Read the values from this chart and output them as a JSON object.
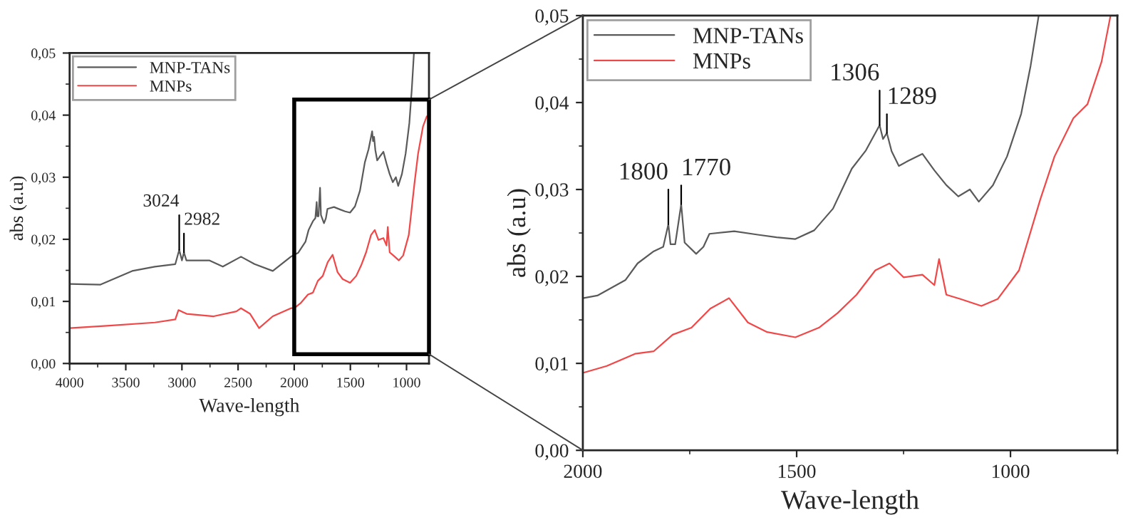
{
  "chart_data": [
    {
      "type": "line",
      "xlabel": "Wave-length",
      "ylabel": "abs (a.u)",
      "xlim": [
        4000,
        800
      ],
      "ylim": [
        0,
        0.05
      ],
      "xticks": [
        4000,
        3500,
        3000,
        2500,
        2000,
        1500,
        1000
      ],
      "yticks": [
        {
          "value": 0,
          "label": "0,00"
        },
        {
          "value": 0.01,
          "label": "0,01"
        },
        {
          "value": 0.02,
          "label": "0,02"
        },
        {
          "value": 0.03,
          "label": "0,03"
        },
        {
          "value": 0.04,
          "label": "0,04"
        },
        {
          "value": 0.05,
          "label": "0,05"
        }
      ],
      "legend": "top left",
      "series": [
        {
          "name": "MNP-TANs",
          "color": "#5a5a5a",
          "x": [
            4000,
            3725,
            3443,
            3241,
            3059,
            3024,
            3000,
            2982,
            2960,
            2757,
            2636,
            2474,
            2353,
            2191,
            2030,
            2000,
            1966,
            1900,
            1872,
            1834,
            1812,
            1800,
            1795,
            1784,
            1770,
            1762,
            1735,
            1718,
            1704,
            1646,
            1591,
            1547,
            1503,
            1459,
            1415,
            1371,
            1338,
            1306,
            1298,
            1289,
            1278,
            1261,
            1239,
            1206,
            1178,
            1150,
            1122,
            1095,
            1074,
            1041,
            1008,
            975,
            953,
            934
          ],
          "values": [
            0.0128,
            0.0127,
            0.0149,
            0.0156,
            0.016,
            0.0183,
            0.0166,
            0.0179,
            0.0166,
            0.0166,
            0.0156,
            0.0172,
            0.016,
            0.0149,
            0.0172,
            0.0175,
            0.0178,
            0.0196,
            0.0215,
            0.0229,
            0.0234,
            0.026,
            0.0237,
            0.0237,
            0.0283,
            0.0239,
            0.0226,
            0.0234,
            0.0249,
            0.0252,
            0.0248,
            0.0245,
            0.0243,
            0.0253,
            0.0278,
            0.0324,
            0.0345,
            0.0374,
            0.0358,
            0.0365,
            0.0344,
            0.0327,
            0.0333,
            0.0341,
            0.0322,
            0.0305,
            0.0292,
            0.03,
            0.0286,
            0.0305,
            0.0338,
            0.0387,
            0.0442,
            0.05
          ]
        },
        {
          "name": "MNPs",
          "color": "#f04848",
          "x": [
            4000,
            3645,
            3241,
            3059,
            3031,
            2958,
            2717,
            2515,
            2474,
            2393,
            2313,
            2191,
            2030,
            2000,
            1944,
            1878,
            1834,
            1790,
            1746,
            1702,
            1658,
            1614,
            1569,
            1503,
            1448,
            1404,
            1360,
            1316,
            1283,
            1250,
            1206,
            1178,
            1167,
            1150,
            1117,
            1068,
            1030,
            980,
            930,
            897,
            853,
            820
          ],
          "values": [
            0.0057,
            0.0061,
            0.0066,
            0.0071,
            0.0086,
            0.008,
            0.0076,
            0.0084,
            0.0089,
            0.008,
            0.0057,
            0.0076,
            0.0089,
            0.0089,
            0.0097,
            0.0111,
            0.0114,
            0.0133,
            0.0141,
            0.0163,
            0.0175,
            0.0147,
            0.0136,
            0.013,
            0.0141,
            0.0158,
            0.0179,
            0.0207,
            0.0215,
            0.0199,
            0.0202,
            0.019,
            0.022,
            0.0179,
            0.0174,
            0.0166,
            0.0174,
            0.0207,
            0.0289,
            0.0338,
            0.0382,
            0.0398
          ]
        }
      ],
      "annotations": [
        {
          "text": "3024",
          "x": 3024,
          "y": 0.0183
        },
        {
          "text": "2982",
          "x": 2982,
          "y": 0.0179
        }
      ]
    },
    {
      "type": "line",
      "xlabel": "Wave-length",
      "ylabel": "abs (a.u)",
      "xlim": [
        2000,
        750
      ],
      "ylim": [
        0,
        0.05
      ],
      "xticks": [
        2000,
        1500,
        1000
      ],
      "yticks": [
        {
          "value": 0,
          "label": "0,00"
        },
        {
          "value": 0.01,
          "label": "0,01"
        },
        {
          "value": 0.02,
          "label": "0,02"
        },
        {
          "value": 0.03,
          "label": "0,03"
        },
        {
          "value": 0.04,
          "label": "0,04"
        },
        {
          "value": 0.05,
          "label": "0,05"
        }
      ],
      "legend": "top left",
      "series": [
        {
          "name": "MNP-TANs",
          "color": "#5a5a5a",
          "x": [
            2000,
            1966,
            1900,
            1872,
            1834,
            1812,
            1800,
            1795,
            1784,
            1770,
            1762,
            1735,
            1718,
            1704,
            1646,
            1591,
            1547,
            1503,
            1459,
            1415,
            1371,
            1338,
            1306,
            1298,
            1289,
            1278,
            1261,
            1239,
            1206,
            1178,
            1150,
            1122,
            1095,
            1074,
            1041,
            1008,
            975,
            953,
            934
          ],
          "values": [
            0.0175,
            0.0178,
            0.0196,
            0.0215,
            0.0229,
            0.0234,
            0.026,
            0.0237,
            0.0237,
            0.0283,
            0.0239,
            0.0226,
            0.0234,
            0.0249,
            0.0252,
            0.0248,
            0.0245,
            0.0243,
            0.0253,
            0.0278,
            0.0324,
            0.0345,
            0.0374,
            0.0358,
            0.0365,
            0.0344,
            0.0327,
            0.0333,
            0.0341,
            0.0322,
            0.0305,
            0.0292,
            0.03,
            0.0286,
            0.0305,
            0.0338,
            0.0387,
            0.0442,
            0.05
          ]
        },
        {
          "name": "MNPs",
          "color": "#f04848",
          "x": [
            2000,
            1944,
            1878,
            1834,
            1790,
            1746,
            1702,
            1658,
            1614,
            1569,
            1503,
            1448,
            1404,
            1360,
            1316,
            1283,
            1250,
            1206,
            1178,
            1167,
            1150,
            1117,
            1068,
            1030,
            980,
            930,
            897,
            853,
            820,
            787,
            766
          ],
          "values": [
            0.0089,
            0.0097,
            0.0111,
            0.0114,
            0.0133,
            0.0141,
            0.0163,
            0.0175,
            0.0147,
            0.0136,
            0.013,
            0.0141,
            0.0158,
            0.0179,
            0.0207,
            0.0215,
            0.0199,
            0.0202,
            0.019,
            0.022,
            0.0179,
            0.0174,
            0.0166,
            0.0174,
            0.0207,
            0.0289,
            0.0338,
            0.0382,
            0.0398,
            0.0447,
            0.05
          ]
        }
      ],
      "annotations": [
        {
          "text": "1800",
          "x": 1800,
          "y": 0.026
        },
        {
          "text": "1770",
          "x": 1770,
          "y": 0.0283
        },
        {
          "text": "1306",
          "x": 1306,
          "y": 0.0374
        },
        {
          "text": "1289",
          "x": 1289,
          "y": 0.0365
        }
      ]
    }
  ]
}
